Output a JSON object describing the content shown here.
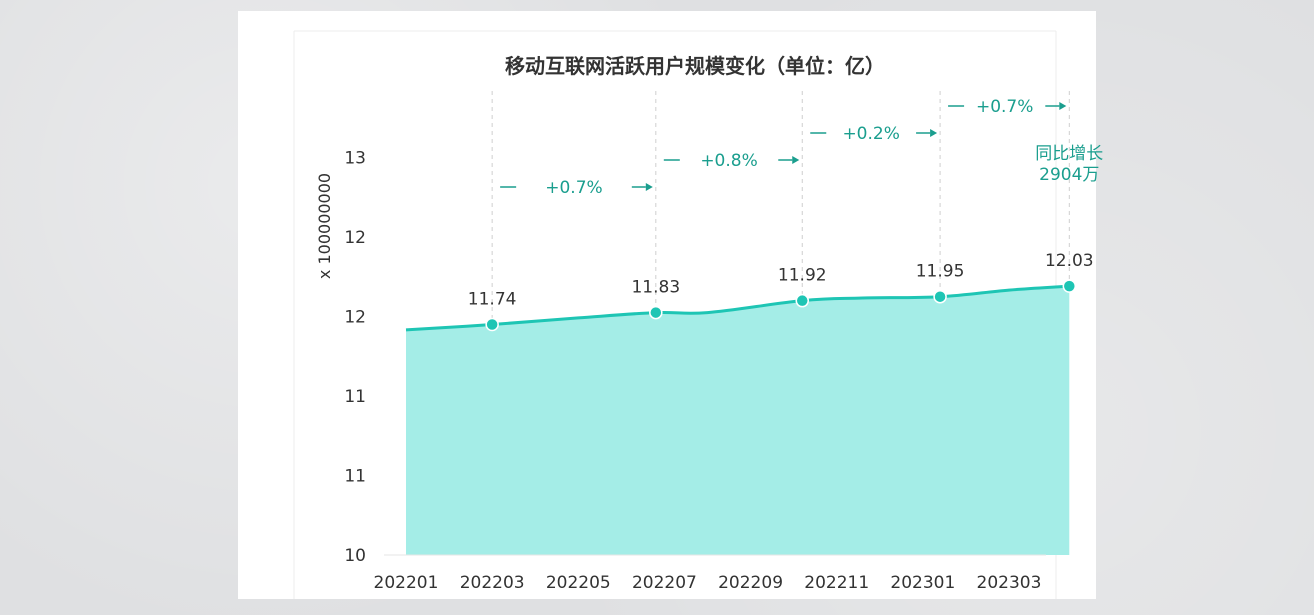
{
  "chart_data": {
    "type": "area",
    "title": "移动互联网活跃用户规模变化（单位：亿）",
    "xlabel": "",
    "ylabel": "x 100000000",
    "categories": [
      "202201",
      "202203",
      "202205",
      "202207",
      "202209",
      "202211",
      "202301",
      "202303"
    ],
    "y_tick_labels": [
      "10",
      "11",
      "11",
      "12",
      "12",
      "13"
    ],
    "ylim": [
      10,
      13.05
    ],
    "grid": false,
    "series": [
      {
        "values": [
          11.7,
          11.74,
          11.79,
          11.83,
          11.83,
          11.92,
          11.94,
          11.95,
          12.0,
          12.03
        ],
        "x": [
          0,
          1,
          2,
          2.9,
          3.5,
          4.6,
          5.3,
          6.2,
          7.0,
          7.7
        ]
      }
    ],
    "points": [
      {
        "x": 1,
        "value": 11.74,
        "label": "11.74"
      },
      {
        "x": 2.9,
        "value": 11.83,
        "label": "11.83"
      },
      {
        "x": 4.6,
        "value": 11.92,
        "label": "11.92"
      },
      {
        "x": 6.2,
        "value": 11.95,
        "label": "11.95"
      },
      {
        "x": 7.7,
        "value": 12.03,
        "label": "12.03"
      }
    ],
    "growth_annotations": [
      {
        "from": 1,
        "to": 2.9,
        "label": "+0.7%"
      },
      {
        "from": 2.9,
        "to": 4.6,
        "label": "+0.8%"
      },
      {
        "from": 4.6,
        "to": 6.2,
        "label": "+0.2%"
      },
      {
        "from": 6.2,
        "to": 7.7,
        "label": "+0.7%"
      }
    ],
    "callout": [
      "同比增长",
      "2904万"
    ],
    "colors": {
      "line": "#1ec5b4",
      "fill": "#a4ede7",
      "annotation": "#1a9e8e",
      "text": "#333333",
      "guide": "#cfcfcf"
    }
  }
}
